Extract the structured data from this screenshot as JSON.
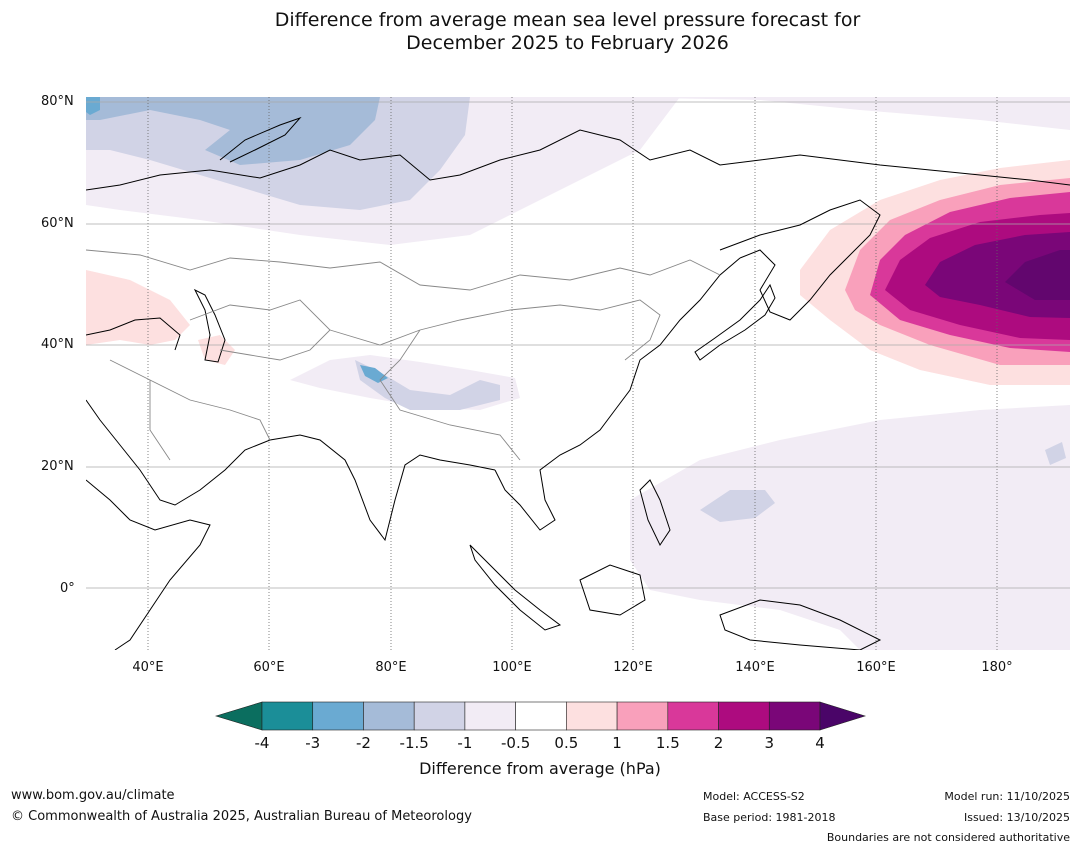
{
  "title": {
    "line1": "Difference from average mean sea level pressure forecast for",
    "line2": "December 2025 to February 2026"
  },
  "map": {
    "region": "Asia",
    "lat_labels": [
      "80°N",
      "60°N",
      "40°N",
      "20°N",
      "0°"
    ],
    "lon_labels": [
      "40°E",
      "60°E",
      "80°E",
      "100°E",
      "120°E",
      "140°E",
      "160°E",
      "180°"
    ]
  },
  "colorbar": {
    "title": "Difference from average (hPa)",
    "ticks": [
      "-4",
      "-3",
      "-2",
      "-1.5",
      "-1",
      "-0.5",
      "0.5",
      "1",
      "1.5",
      "2",
      "3",
      "4"
    ],
    "colors": {
      "below_min": "#0b6e5f",
      "bins": [
        "#1b8e98",
        "#6aaad2",
        "#a5bbd8",
        "#d1d3e6",
        "#f2ecf5",
        "#ffffff",
        "#fde0e0",
        "#f9a0bb",
        "#d9389a",
        "#ad0b7f",
        "#7a0678"
      ],
      "above_max": "#4a0568"
    }
  },
  "footer": {
    "website": "www.bom.gov.au/climate",
    "copyright": "© Commonwealth of Australia 2025, Australian Bureau of Meteorology",
    "model": "Model: ACCESS-S2",
    "base_period": "Base period: 1981-2018",
    "model_run": "Model run: 11/10/2025",
    "issued": "Issued: 13/10/2025",
    "disclaimer": "Boundaries are not considered authoritative"
  }
}
